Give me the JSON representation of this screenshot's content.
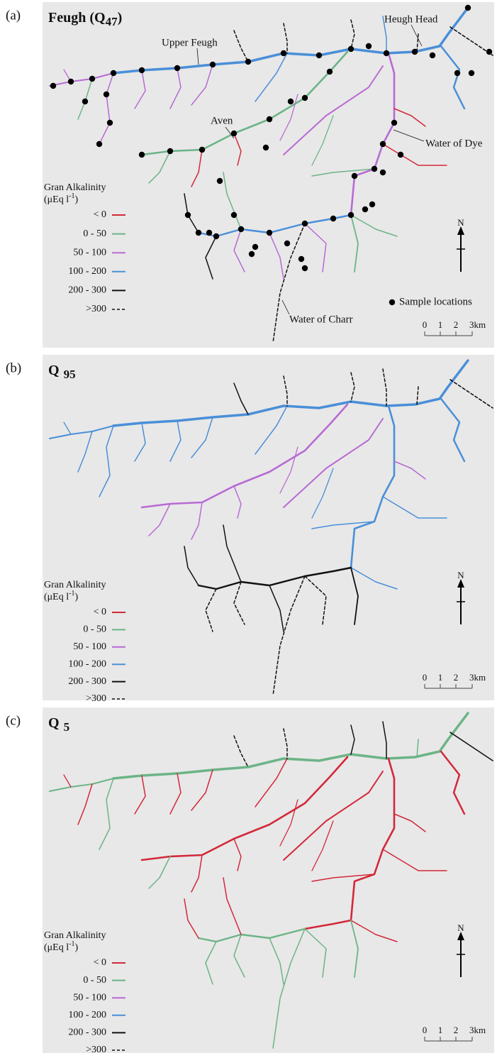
{
  "legend": {
    "title": "Gran Alkalinity",
    "unit_prefix": "(μEq l",
    "unit_superscript": "-1",
    "unit_suffix": ")",
    "classes": [
      {
        "label": "< 0",
        "color": "#d3283a"
      },
      {
        "label": "0 - 50",
        "color": "#6cb487"
      },
      {
        "label": "50 - 100",
        "color": "#b86ad4"
      },
      {
        "label": "100 - 200",
        "color": "#4a8fd8"
      },
      {
        "label": "200 - 300",
        "color": "#111111"
      },
      {
        "label": ">300",
        "color": "#111111",
        "dashed": true
      }
    ]
  },
  "north_label": "N",
  "scale_labels": [
    "0",
    "1",
    "2",
    "3km"
  ],
  "panels": [
    {
      "label": "(a)",
      "title": "Feugh (Q",
      "title_subscript": "47",
      "title_suffix": ")",
      "places": [
        "Upper Feugh",
        "Heugh Head",
        "Aven",
        "Water of Dye",
        "Water of Charr"
      ],
      "sample_label": "Sample locations"
    },
    {
      "label": "(b)",
      "title": "Q",
      "title_subscript": "95"
    },
    {
      "label": "(c)",
      "title": "Q",
      "title_subscript": "5"
    }
  ]
}
